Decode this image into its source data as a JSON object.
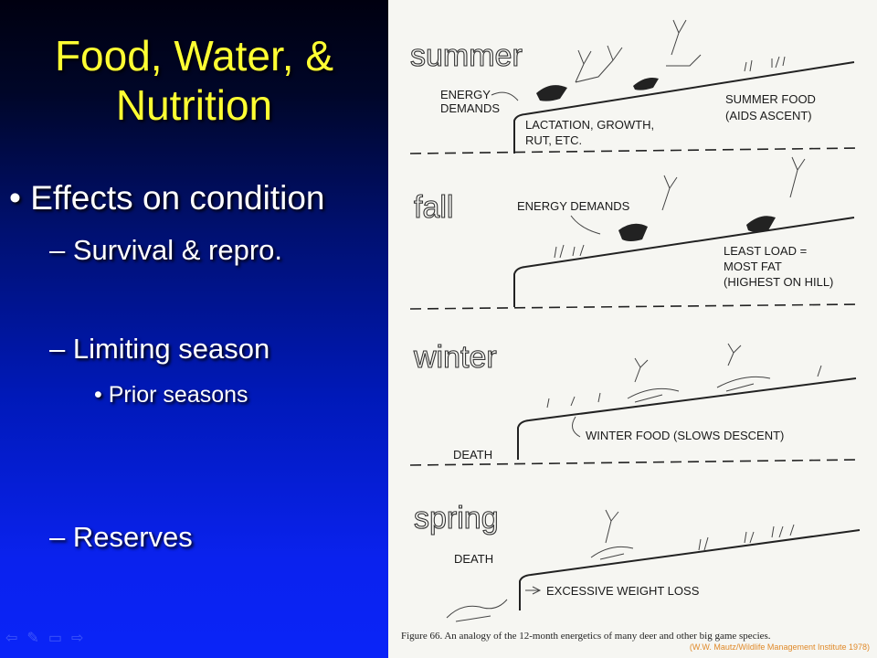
{
  "slide": {
    "title_line1": "Food, Water, &",
    "title_line2": "Nutrition",
    "bullets": {
      "main": "• Effects on condition",
      "survival": "– Survival & repro.",
      "limiting": "– Limiting season",
      "prior": "• Prior seasons",
      "reserves": "– Reserves"
    }
  },
  "figure": {
    "seasons": [
      "summer",
      "fall",
      "winter",
      "spring"
    ],
    "labels": {
      "summer_energy_1": "ENERGY",
      "summer_energy_2": "DEMANDS",
      "summer_lact_1": "LACTATION, GROWTH,",
      "summer_lact_2": "RUT, ETC.",
      "summer_food_1": "SUMMER FOOD",
      "summer_food_2": "(AIDS ASCENT)",
      "fall_energy": "ENERGY DEMANDS",
      "fall_load_1": "LEAST LOAD =",
      "fall_load_2": "MOST FAT",
      "fall_load_3": "(HIGHEST ON HILL)",
      "winter_death": "DEATH",
      "winter_food": "WINTER FOOD (SLOWS DESCENT)",
      "spring_death": "DEATH",
      "spring_loss": "EXCESSIVE WEIGHT LOSS"
    },
    "caption": "Figure 66.  An analogy of the 12-month energetics of many deer and other big game species.",
    "credit": "(W.W. Mautz/Wildlife Management Institute 1978)"
  },
  "nav_icons": [
    "back-arrow-icon",
    "pen-icon",
    "menu-icon",
    "forward-arrow-icon"
  ]
}
